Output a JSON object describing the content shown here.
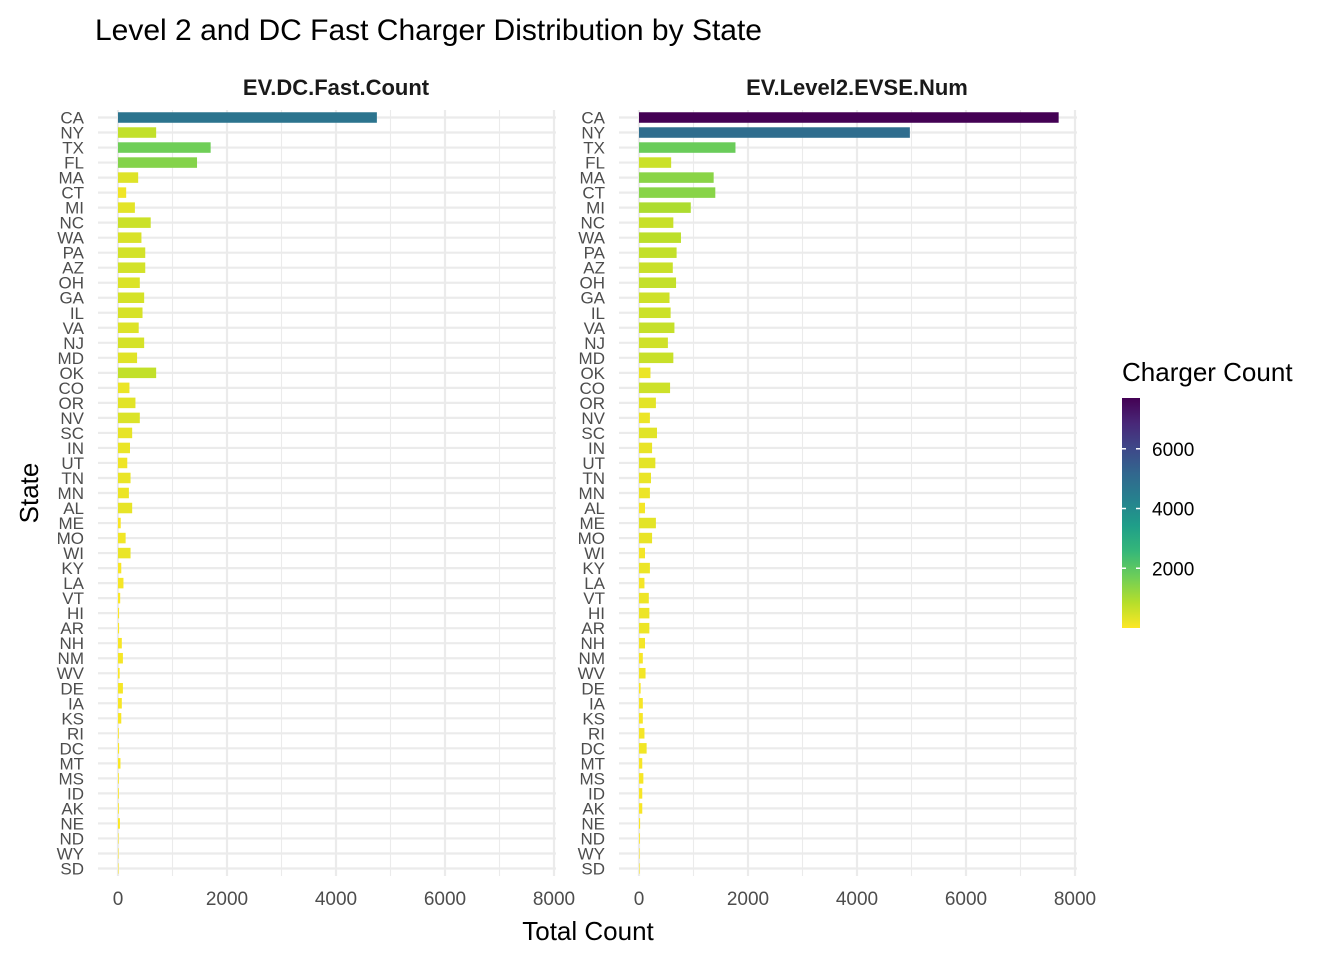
{
  "chart_data": {
    "type": "bar",
    "orientation": "horizontal",
    "title": "Level 2 and DC Fast Charger Distribution by State",
    "xlabel": "Total Count",
    "ylabel": "State",
    "xlim": [
      0,
      8000
    ],
    "x_ticks": [
      "0",
      "2000",
      "4000",
      "6000",
      "8000"
    ],
    "grid": true,
    "legend": {
      "title": "Charger Count",
      "position": "right",
      "type": "colorbar",
      "ticks": [
        "2000",
        "4000",
        "6000"
      ],
      "tick_values": [
        2000,
        4000,
        6000
      ],
      "range": [
        0,
        7700
      ],
      "colors": [
        "#fde725",
        "#b5de2b",
        "#6ece58",
        "#35b779",
        "#1f9e89",
        "#26828e",
        "#31688e",
        "#3e4989",
        "#482878",
        "#440154"
      ]
    },
    "categories": [
      "CA",
      "NY",
      "TX",
      "FL",
      "MA",
      "CT",
      "MI",
      "NC",
      "WA",
      "PA",
      "AZ",
      "OH",
      "GA",
      "IL",
      "VA",
      "NJ",
      "MD",
      "OK",
      "CO",
      "OR",
      "NV",
      "SC",
      "IN",
      "UT",
      "TN",
      "MN",
      "AL",
      "ME",
      "MO",
      "WI",
      "KY",
      "LA",
      "VT",
      "HI",
      "AR",
      "NH",
      "NM",
      "WV",
      "DE",
      "IA",
      "KS",
      "RI",
      "DC",
      "MT",
      "MS",
      "ID",
      "AK",
      "NE",
      "ND",
      "WY",
      "SD"
    ],
    "series": [
      {
        "name": "EV.DC.Fast.Count",
        "values": [
          4750,
          700,
          1700,
          1450,
          370,
          150,
          310,
          600,
          430,
          500,
          500,
          400,
          480,
          450,
          380,
          480,
          350,
          700,
          210,
          320,
          400,
          260,
          220,
          170,
          230,
          200,
          260,
          50,
          140,
          230,
          60,
          100,
          40,
          20,
          20,
          70,
          90,
          30,
          90,
          70,
          60,
          15,
          20,
          45,
          15,
          15,
          15,
          35,
          10,
          5,
          5
        ]
      },
      {
        "name": "EV.Level2.EVSE.Num",
        "values": [
          7700,
          4970,
          1770,
          590,
          1370,
          1400,
          950,
          630,
          770,
          690,
          620,
          680,
          560,
          580,
          650,
          530,
          630,
          210,
          570,
          310,
          200,
          330,
          240,
          300,
          220,
          200,
          110,
          310,
          240,
          110,
          200,
          100,
          180,
          190,
          190,
          110,
          70,
          120,
          30,
          70,
          70,
          100,
          140,
          60,
          80,
          60,
          60,
          20,
          15,
          10,
          10
        ]
      }
    ]
  }
}
